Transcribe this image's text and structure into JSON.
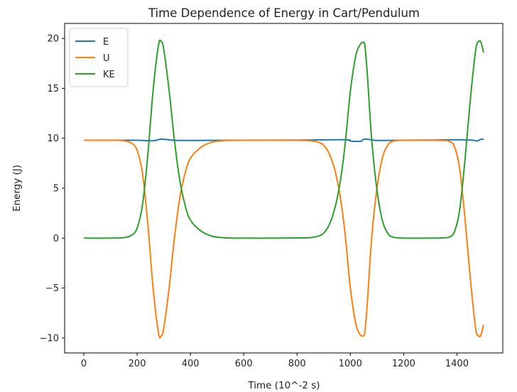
{
  "chart_data": {
    "type": "line",
    "title": "Time Dependence of Energy in Cart/Pendulum",
    "xlabel": "Time (10^-2 s)",
    "ylabel": "Energy (J)",
    "xlim": [
      -72,
      1572
    ],
    "ylim": [
      -11.5,
      21.5
    ],
    "xticks": [
      0,
      200,
      400,
      600,
      800,
      1000,
      1200,
      1400
    ],
    "yticks": [
      -10,
      -5,
      0,
      5,
      10,
      15,
      20
    ],
    "ytick_labels": [
      "−10",
      "−5",
      "0",
      "5",
      "10",
      "15",
      "20"
    ],
    "grid": false,
    "legend_position": "top-left",
    "colors": {
      "E": "#1f77b4",
      "U": "#ff7f0e",
      "KE": "#2ca02c"
    },
    "series": [
      {
        "name": "E",
        "x": [
          0,
          100,
          200,
          260,
          285,
          300,
          340,
          400,
          600,
          800,
          980,
          1000,
          1040,
          1050,
          1080,
          1100,
          1200,
          1300,
          1400,
          1460,
          1475,
          1490,
          1500
        ],
        "y": [
          9.8,
          9.8,
          9.8,
          9.75,
          9.9,
          9.9,
          9.8,
          9.78,
          9.8,
          9.82,
          9.85,
          9.72,
          9.7,
          9.9,
          9.85,
          9.78,
          9.8,
          9.82,
          9.85,
          9.8,
          9.72,
          9.9,
          9.9
        ]
      },
      {
        "name": "U",
        "x": [
          0,
          100,
          150,
          180,
          200,
          220,
          240,
          260,
          280,
          290,
          300,
          320,
          340,
          360,
          380,
          400,
          440,
          480,
          520,
          560,
          600,
          700,
          800,
          850,
          880,
          900,
          920,
          940,
          960,
          980,
          1000,
          1020,
          1035,
          1047,
          1055,
          1065,
          1080,
          1100,
          1120,
          1140,
          1160,
          1200,
          1300,
          1350,
          1370,
          1390,
          1410,
          1430,
          1450,
          1470,
          1482,
          1490,
          1500
        ],
        "y": [
          9.8,
          9.8,
          9.75,
          9.5,
          8.8,
          6.5,
          1.5,
          -5.0,
          -9.5,
          -9.8,
          -9.0,
          -5.0,
          0.0,
          4.0,
          6.5,
          8.0,
          9.1,
          9.6,
          9.75,
          9.8,
          9.8,
          9.8,
          9.8,
          9.75,
          9.6,
          9.3,
          8.5,
          7.0,
          4.5,
          0.5,
          -5.0,
          -8.5,
          -9.6,
          -9.8,
          -9.3,
          -6.0,
          0.0,
          5.0,
          8.0,
          9.3,
          9.7,
          9.8,
          9.8,
          9.78,
          9.7,
          9.2,
          7.0,
          2.0,
          -4.0,
          -9.0,
          -9.8,
          -9.7,
          -8.7
        ]
      },
      {
        "name": "KE",
        "x": [
          0,
          100,
          150,
          180,
          200,
          220,
          240,
          260,
          280,
          290,
          300,
          320,
          340,
          360,
          380,
          400,
          440,
          480,
          520,
          560,
          600,
          700,
          800,
          850,
          880,
          900,
          920,
          940,
          960,
          980,
          1000,
          1020,
          1035,
          1047,
          1055,
          1065,
          1080,
          1100,
          1120,
          1140,
          1160,
          1200,
          1300,
          1350,
          1370,
          1390,
          1410,
          1430,
          1450,
          1470,
          1482,
          1490,
          1500
        ],
        "y": [
          0.0,
          0.0,
          0.05,
          0.3,
          1.0,
          3.3,
          8.3,
          14.8,
          19.3,
          19.7,
          18.9,
          14.8,
          9.8,
          5.8,
          3.3,
          1.8,
          0.7,
          0.2,
          0.05,
          0.0,
          0.0,
          0.0,
          0.02,
          0.05,
          0.2,
          0.5,
          1.3,
          2.8,
          5.3,
          9.3,
          14.7,
          18.2,
          19.3,
          19.6,
          19.2,
          15.9,
          9.9,
          4.8,
          1.8,
          0.5,
          0.1,
          0.0,
          0.0,
          0.02,
          0.1,
          0.6,
          2.8,
          7.8,
          13.8,
          18.8,
          19.7,
          19.6,
          18.6
        ]
      }
    ]
  }
}
